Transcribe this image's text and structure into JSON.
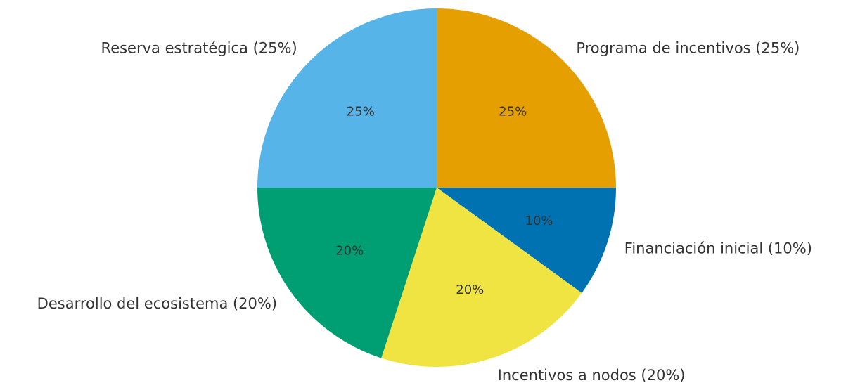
{
  "chart_data": {
    "type": "pie",
    "start_angle_deg": 90,
    "direction": "clockwise",
    "slices": [
      {
        "label": "Programa de incentivos (25%)",
        "value": 25,
        "pct_label": "25%",
        "color": "#E69F00"
      },
      {
        "label": "Financiación inicial (10%)",
        "value": 10,
        "pct_label": "10%",
        "color": "#0072B2"
      },
      {
        "label": "Incentivos a nodos (20%)",
        "value": 20,
        "pct_label": "20%",
        "color": "#F0E442"
      },
      {
        "label": "Desarrollo del ecosistema (20%)",
        "value": 20,
        "pct_label": "20%",
        "color": "#009E73"
      },
      {
        "label": "Reserva estratégica (25%)",
        "value": 25,
        "pct_label": "25%",
        "color": "#56B4E9"
      }
    ]
  }
}
